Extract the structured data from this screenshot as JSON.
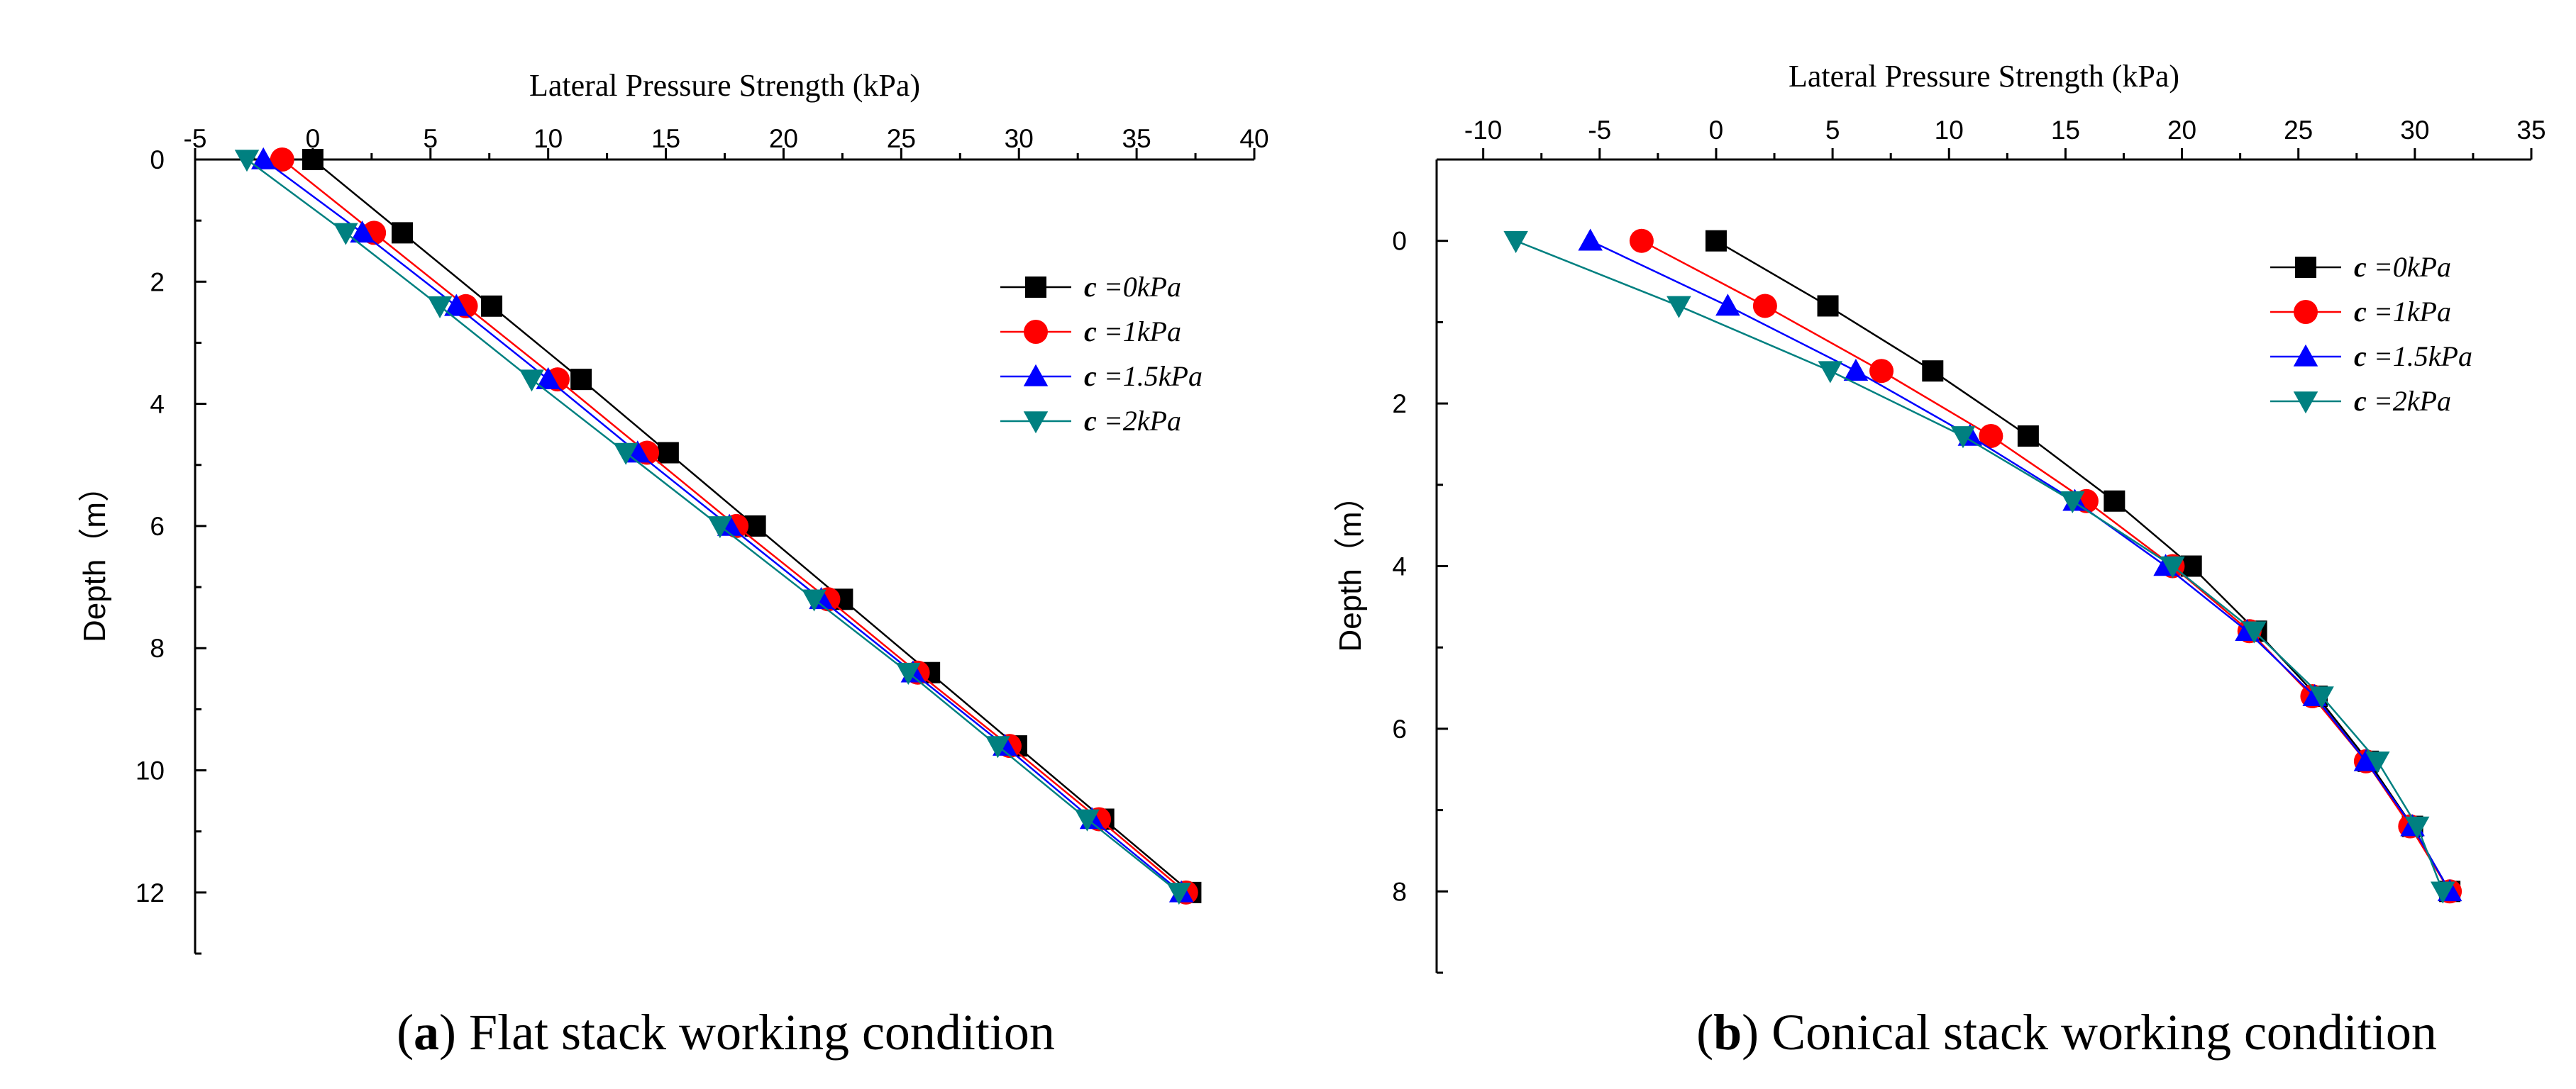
{
  "chart_data": [
    {
      "type": "line",
      "caption_label": "a",
      "caption_text": "Flat stack working condition",
      "xlabel": "Lateral Pressure Strength (kPa)",
      "ylabel": "Depth（m）",
      "xlim": [
        -5,
        40
      ],
      "ylim": [
        0,
        13
      ],
      "x_ticks": [
        -5,
        0,
        5,
        10,
        15,
        20,
        25,
        30,
        35,
        40
      ],
      "y_ticks": [
        0,
        2,
        4,
        6,
        8,
        10,
        12
      ],
      "legend_position": "top-right",
      "series": [
        {
          "name": "0kPa",
          "color": "#000000",
          "marker": "square",
          "x": [
            0,
            3.8,
            7.6,
            11.4,
            15.1,
            18.8,
            22.5,
            26.2,
            29.9,
            33.6,
            37.3
          ],
          "y": [
            0,
            1.2,
            2.4,
            3.6,
            4.8,
            6.0,
            7.2,
            8.4,
            9.6,
            10.8,
            12.0
          ]
        },
        {
          "name": "1kPa",
          "color": "#ff0000",
          "marker": "circle",
          "x": [
            -1.3,
            2.6,
            6.5,
            10.4,
            14.2,
            18.0,
            21.9,
            25.7,
            29.6,
            33.4,
            37.1
          ],
          "y": [
            0,
            1.2,
            2.4,
            3.6,
            4.8,
            6.0,
            7.2,
            8.4,
            9.6,
            10.8,
            12.0
          ]
        },
        {
          "name": "1.5kPa",
          "color": "#0000ff",
          "marker": "triangle-up",
          "x": [
            -2.1,
            2.1,
            6.1,
            10.0,
            13.8,
            17.7,
            21.6,
            25.5,
            29.4,
            33.1,
            36.9
          ],
          "y": [
            0,
            1.2,
            2.4,
            3.6,
            4.8,
            6.0,
            7.2,
            8.4,
            9.6,
            10.8,
            12.0
          ]
        },
        {
          "name": "2kPa",
          "color": "#008080",
          "marker": "triangle-down",
          "x": [
            -2.8,
            1.4,
            5.4,
            9.3,
            13.3,
            17.3,
            21.3,
            25.3,
            29.1,
            32.9,
            36.8
          ],
          "y": [
            0,
            1.2,
            2.4,
            3.6,
            4.8,
            6.0,
            7.2,
            8.4,
            9.6,
            10.8,
            12.0
          ]
        }
      ]
    },
    {
      "type": "line",
      "caption_label": "b",
      "caption_text": "Conical stack working condition",
      "xlabel": "Lateral Pressure Strength (kPa)",
      "ylabel": "Depth（m）",
      "xlim": [
        -12,
        35
      ],
      "ylim": [
        -1,
        9
      ],
      "x_ticks": [
        -10,
        -5,
        0,
        5,
        10,
        15,
        20,
        25,
        30,
        35
      ],
      "y_ticks": [
        0,
        2,
        4,
        6,
        8
      ],
      "legend_position": "top-right",
      "series": [
        {
          "name": "0kPa",
          "color": "#000000",
          "marker": "square",
          "x": [
            0,
            4.8,
            9.3,
            13.4,
            17.1,
            20.4,
            23.2,
            25.8,
            28.0,
            29.9,
            31.5
          ],
          "y": [
            0,
            0.8,
            1.6,
            2.4,
            3.2,
            4.0,
            4.8,
            5.6,
            6.4,
            7.2,
            8.0
          ]
        },
        {
          "name": "1kPa",
          "color": "#ff0000",
          "marker": "circle",
          "x": [
            -3.2,
            2.1,
            7.1,
            11.8,
            15.9,
            19.6,
            22.9,
            25.6,
            27.9,
            29.8,
            31.5
          ],
          "y": [
            0,
            0.8,
            1.6,
            2.4,
            3.2,
            4.0,
            4.8,
            5.6,
            6.4,
            7.2,
            8.0
          ]
        },
        {
          "name": "1.5kPa",
          "color": "#0000ff",
          "marker": "triangle-up",
          "x": [
            -5.4,
            0.5,
            6.0,
            10.9,
            15.4,
            19.3,
            22.8,
            25.7,
            27.9,
            29.9,
            31.5
          ],
          "y": [
            0,
            0.8,
            1.6,
            2.4,
            3.2,
            4.0,
            4.8,
            5.6,
            6.4,
            7.2,
            8.0
          ]
        },
        {
          "name": "2kPa",
          "color": "#008080",
          "marker": "triangle-down",
          "x": [
            -8.6,
            -1.6,
            4.9,
            10.6,
            15.3,
            19.6,
            23.1,
            26.0,
            28.4,
            30.1,
            31.2
          ],
          "y": [
            0,
            0.8,
            1.6,
            2.4,
            3.2,
            4.0,
            4.8,
            5.6,
            6.4,
            7.2,
            8.0
          ]
        }
      ]
    }
  ]
}
